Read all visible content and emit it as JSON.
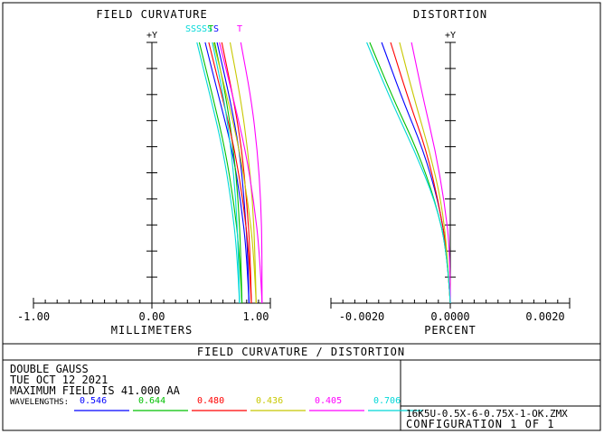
{
  "chart_data": [
    {
      "type": "line",
      "title": "FIELD CURVATURE",
      "xlabel": "MILLIMETERS",
      "ylabel": "+Y",
      "xlim": [
        -1.0,
        1.0
      ],
      "ylim": [
        0,
        41.0
      ],
      "xticks": [
        "-1.00",
        "0.00",
        "1.00"
      ],
      "curve_labels": [
        "SSSSS",
        "T",
        "S",
        "T"
      ],
      "series": [
        {
          "name": "0.546 S",
          "color": "#0000ff",
          "x": [
            0.82,
            0.8,
            0.75,
            0.68,
            0.57,
            0.45
          ],
          "y": [
            0,
            8,
            16,
            24,
            32,
            41
          ]
        },
        {
          "name": "0.546 T",
          "color": "#0000ff",
          "x": [
            0.82,
            0.81,
            0.78,
            0.74,
            0.66,
            0.55
          ],
          "y": [
            0,
            8,
            16,
            24,
            32,
            41
          ]
        },
        {
          "name": "0.644 S",
          "color": "#00c000",
          "x": [
            0.76,
            0.74,
            0.69,
            0.62,
            0.52,
            0.4
          ],
          "y": [
            0,
            8,
            16,
            24,
            32,
            41
          ]
        },
        {
          "name": "0.644 T",
          "color": "#00c000",
          "x": [
            0.76,
            0.75,
            0.73,
            0.69,
            0.63,
            0.53
          ],
          "y": [
            0,
            8,
            16,
            24,
            32,
            41
          ]
        },
        {
          "name": "0.480 S",
          "color": "#ff0000",
          "x": [
            0.84,
            0.82,
            0.77,
            0.7,
            0.6,
            0.48
          ],
          "y": [
            0,
            8,
            16,
            24,
            32,
            41
          ]
        },
        {
          "name": "0.480 T",
          "color": "#ff0000",
          "x": [
            0.84,
            0.83,
            0.8,
            0.76,
            0.69,
            0.59
          ],
          "y": [
            0,
            8,
            16,
            24,
            32,
            41
          ]
        },
        {
          "name": "0.436 S",
          "color": "#c8c800",
          "x": [
            0.88,
            0.86,
            0.81,
            0.74,
            0.64,
            0.52
          ],
          "y": [
            0,
            8,
            16,
            24,
            32,
            41
          ]
        },
        {
          "name": "0.436 T",
          "color": "#c8c800",
          "x": [
            0.88,
            0.87,
            0.85,
            0.81,
            0.75,
            0.66
          ],
          "y": [
            0,
            8,
            16,
            24,
            32,
            41
          ]
        },
        {
          "name": "0.405 S",
          "color": "#ff00ff",
          "x": [
            0.93,
            0.91,
            0.86,
            0.79,
            0.69,
            0.57
          ],
          "y": [
            0,
            8,
            16,
            24,
            32,
            41
          ]
        },
        {
          "name": "0.405 T",
          "color": "#ff00ff",
          "x": [
            0.93,
            0.93,
            0.92,
            0.89,
            0.84,
            0.75
          ],
          "y": [
            0,
            8,
            16,
            24,
            32,
            41
          ]
        },
        {
          "name": "0.706 S",
          "color": "#00d8d8",
          "x": [
            0.74,
            0.72,
            0.67,
            0.6,
            0.5,
            0.38
          ],
          "y": [
            0,
            8,
            16,
            24,
            32,
            41
          ]
        },
        {
          "name": "0.706 T",
          "color": "#00d8d8",
          "x": [
            0.74,
            0.73,
            0.71,
            0.67,
            0.61,
            0.51
          ],
          "y": [
            0,
            8,
            16,
            24,
            32,
            41
          ]
        }
      ]
    },
    {
      "type": "line",
      "title": "DISTORTION",
      "xlabel": "PERCENT",
      "ylabel": "+Y",
      "xlim": [
        -0.004,
        0.004
      ],
      "ylim": [
        0,
        41.0
      ],
      "xticks": [
        "-0.0020",
        "0.0000",
        "0.0020"
      ],
      "series": [
        {
          "name": "0.546",
          "color": "#0000ff",
          "x": [
            0.0,
            -0.0001,
            -0.0004,
            -0.0009,
            -0.0016,
            -0.0023
          ],
          "y": [
            0,
            8,
            16,
            24,
            32,
            41
          ]
        },
        {
          "name": "0.644",
          "color": "#00c000",
          "x": [
            0.0,
            -0.0001,
            -0.0005,
            -0.0011,
            -0.0019,
            -0.0027
          ],
          "y": [
            0,
            8,
            16,
            24,
            32,
            41
          ]
        },
        {
          "name": "0.480",
          "color": "#ff0000",
          "x": [
            0.0,
            -0.0001,
            -0.0004,
            -0.0008,
            -0.0014,
            -0.002
          ],
          "y": [
            0,
            8,
            16,
            24,
            32,
            41
          ]
        },
        {
          "name": "0.436",
          "color": "#c8c800",
          "x": [
            0.0,
            -0.0001,
            -0.0003,
            -0.0007,
            -0.0012,
            -0.0017
          ],
          "y": [
            0,
            8,
            16,
            24,
            32,
            41
          ]
        },
        {
          "name": "0.405",
          "color": "#ff00ff",
          "x": [
            0.0,
            0.0,
            -0.0002,
            -0.0005,
            -0.0009,
            -0.0013
          ],
          "y": [
            0,
            8,
            16,
            24,
            32,
            41
          ]
        },
        {
          "name": "0.706",
          "color": "#00d8d8",
          "x": [
            0.0,
            -0.0001,
            -0.0005,
            -0.0012,
            -0.002,
            -0.0028
          ],
          "y": [
            0,
            8,
            16,
            24,
            32,
            41
          ]
        }
      ]
    }
  ],
  "footer": {
    "banner": "FIELD CURVATURE / DISTORTION",
    "line1": "DOUBLE GAUSS",
    "line2": "TUE OCT 12 2021",
    "line3": "MAXIMUM FIELD IS 41.000  AA",
    "wavelengths_label": "WAVELENGTHS:",
    "wavelengths": [
      {
        "label": "0.546",
        "color": "#0000ff"
      },
      {
        "label": "0.644",
        "color": "#00c000"
      },
      {
        "label": "0.480",
        "color": "#ff0000"
      },
      {
        "label": "0.436",
        "color": "#c8c800"
      },
      {
        "label": "0.405",
        "color": "#ff00ff"
      },
      {
        "label": "0.706",
        "color": "#00d8d8"
      }
    ],
    "filename": "16K5U-0.5X-6-0.75X-1-OK.ZMX",
    "configuration": "CONFIGURATION 1 OF 1"
  }
}
